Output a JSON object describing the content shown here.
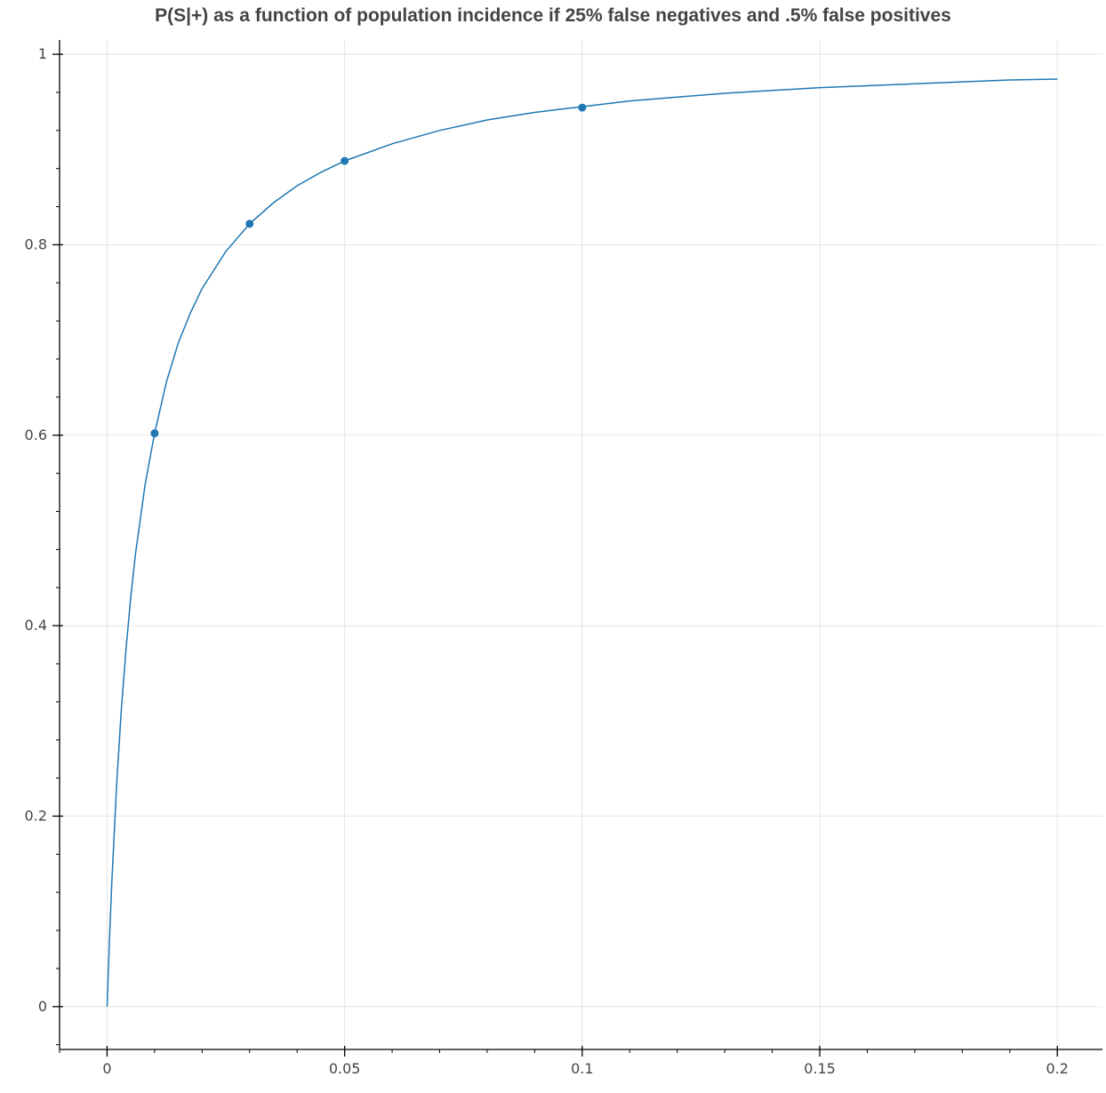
{
  "chart_data": {
    "type": "line",
    "title": "P(S|+) as a function of population incidence if 25% false negatives and .5% false positives",
    "xlabel": "",
    "ylabel": "",
    "xlim": [
      -0.01,
      0.2095
    ],
    "ylim": [
      -0.045,
      1.015
    ],
    "grid": true,
    "x_ticks": [
      0,
      0.05,
      0.1,
      0.15,
      0.2
    ],
    "x_tick_labels": [
      "0",
      "0.05",
      "0.1",
      "0.15",
      "0.2"
    ],
    "y_ticks": [
      0,
      0.2,
      0.4,
      0.6,
      0.8,
      1
    ],
    "y_tick_labels": [
      "0",
      "0.2",
      "0.4",
      "0.6",
      "0.8",
      "1"
    ],
    "series": [
      {
        "kind": "line",
        "x": [
          0,
          0.0005,
          0.001,
          0.002,
          0.003,
          0.004,
          0.005,
          0.006,
          0.008,
          0.01,
          0.0125,
          0.015,
          0.0175,
          0.02,
          0.025,
          0.03,
          0.035,
          0.04,
          0.045,
          0.05,
          0.06,
          0.07,
          0.08,
          0.09,
          0.1,
          0.11,
          0.12,
          0.13,
          0.14,
          0.15,
          0.16,
          0.17,
          0.18,
          0.19,
          0.2
        ],
        "y": [
          0,
          0.07,
          0.131,
          0.232,
          0.312,
          0.376,
          0.431,
          0.476,
          0.548,
          0.602,
          0.656,
          0.697,
          0.728,
          0.754,
          0.793,
          0.822,
          0.844,
          0.862,
          0.876,
          0.888,
          0.906,
          0.92,
          0.931,
          0.939,
          0.945,
          0.951,
          0.955,
          0.959,
          0.962,
          0.965,
          0.967,
          0.969,
          0.971,
          0.973,
          0.974
        ]
      },
      {
        "kind": "scatter",
        "x": [
          0.01,
          0.03,
          0.05,
          0.1
        ],
        "y": [
          0.602,
          0.822,
          0.888,
          0.944
        ]
      }
    ],
    "colors": {
      "line": "#1f77b4",
      "points": "#1f77b4"
    }
  }
}
